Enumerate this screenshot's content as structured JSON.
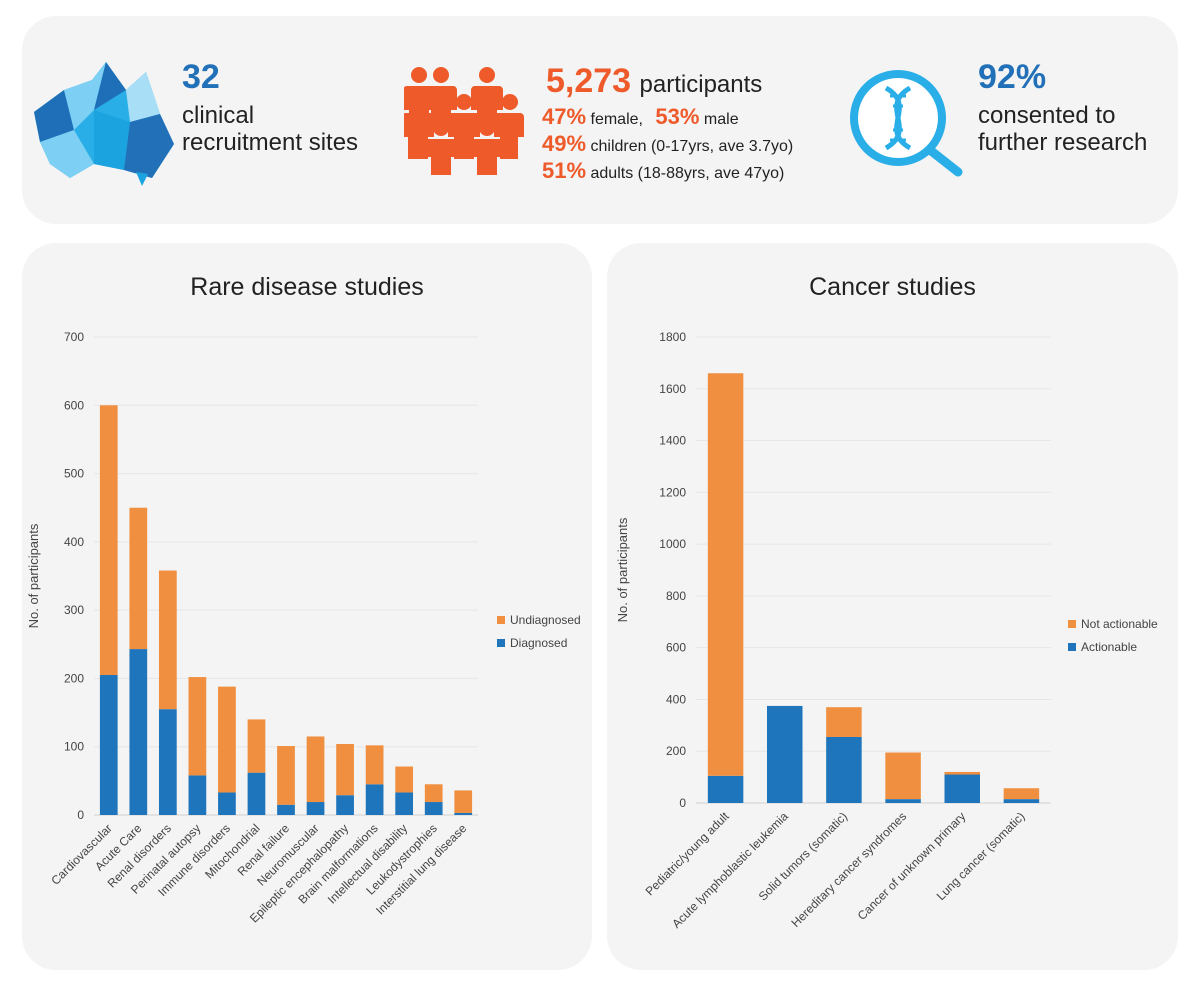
{
  "stats": {
    "sites": {
      "number": "32",
      "line1": "clinical",
      "line2": "recruitment sites"
    },
    "participants": {
      "number": "5,273",
      "label": "participants",
      "female_pct": "47%",
      "female_label": "female,",
      "male_pct": "53%",
      "male_label": "male",
      "children_pct": "49%",
      "children_label": "children (0-17yrs, ave 3.7yo)",
      "adults_pct": "51%",
      "adults_label": "adults (18-88yrs, ave 47yo)"
    },
    "consent": {
      "number": "92%",
      "line1": "consented to",
      "line2": "further research"
    }
  },
  "colors": {
    "blue": "#1f75bb",
    "orange": "#f08f3f",
    "brand_blue": "#2271b8",
    "brand_orange": "#ee5a2a"
  },
  "chart_data": [
    {
      "type": "bar",
      "stacked": true,
      "title": "Rare disease studies",
      "ylabel": "No. of participants",
      "xlabel": "",
      "ylim": [
        0,
        700
      ],
      "yticks": [
        0,
        100,
        200,
        300,
        400,
        500,
        600,
        700
      ],
      "categories": [
        "Cardiovascular",
        "Acute Care",
        "Renal disorders",
        "Perinatal autopsy",
        "Immune disorders",
        "Mitochondrial",
        "Renal failure",
        "Neuromuscular",
        "Epileptic encephalopathy",
        "Brain malformations",
        "Intellectual disability",
        "Leukodystrophies",
        "Interstitial lung disease"
      ],
      "series": [
        {
          "name": "Diagnosed",
          "color": "#1f75bb",
          "values": [
            205,
            243,
            155,
            58,
            33,
            62,
            15,
            19,
            29,
            45,
            33,
            19,
            3
          ]
        },
        {
          "name": "Undiagnosed",
          "color": "#f08f3f",
          "values": [
            395,
            207,
            203,
            144,
            155,
            78,
            86,
            96,
            75,
            57,
            38,
            26,
            33
          ]
        }
      ],
      "legend": [
        "Undiagnosed",
        "Diagnosed"
      ],
      "legend_position": "right"
    },
    {
      "type": "bar",
      "stacked": true,
      "title": "Cancer studies",
      "ylabel": "No. of participants",
      "xlabel": "",
      "ylim": [
        0,
        1800
      ],
      "yticks": [
        0,
        200,
        400,
        600,
        800,
        1000,
        1200,
        1400,
        1600,
        1800
      ],
      "categories": [
        "Pediatric/young adult",
        "Acute lymphoblastic leukemia",
        "Solid tumors (somatic)",
        "Hereditary cancer syndromes",
        "Cancer of unknown primary",
        "Lung cancer (somatic)"
      ],
      "series": [
        {
          "name": "Actionable",
          "color": "#1f75bb",
          "values": [
            105,
            375,
            255,
            15,
            110,
            15
          ]
        },
        {
          "name": "Not actionable",
          "color": "#f08f3f",
          "values": [
            1555,
            0,
            115,
            180,
            10,
            42
          ]
        }
      ],
      "legend": [
        "Not actionable",
        "Actionable"
      ],
      "legend_position": "right"
    }
  ]
}
